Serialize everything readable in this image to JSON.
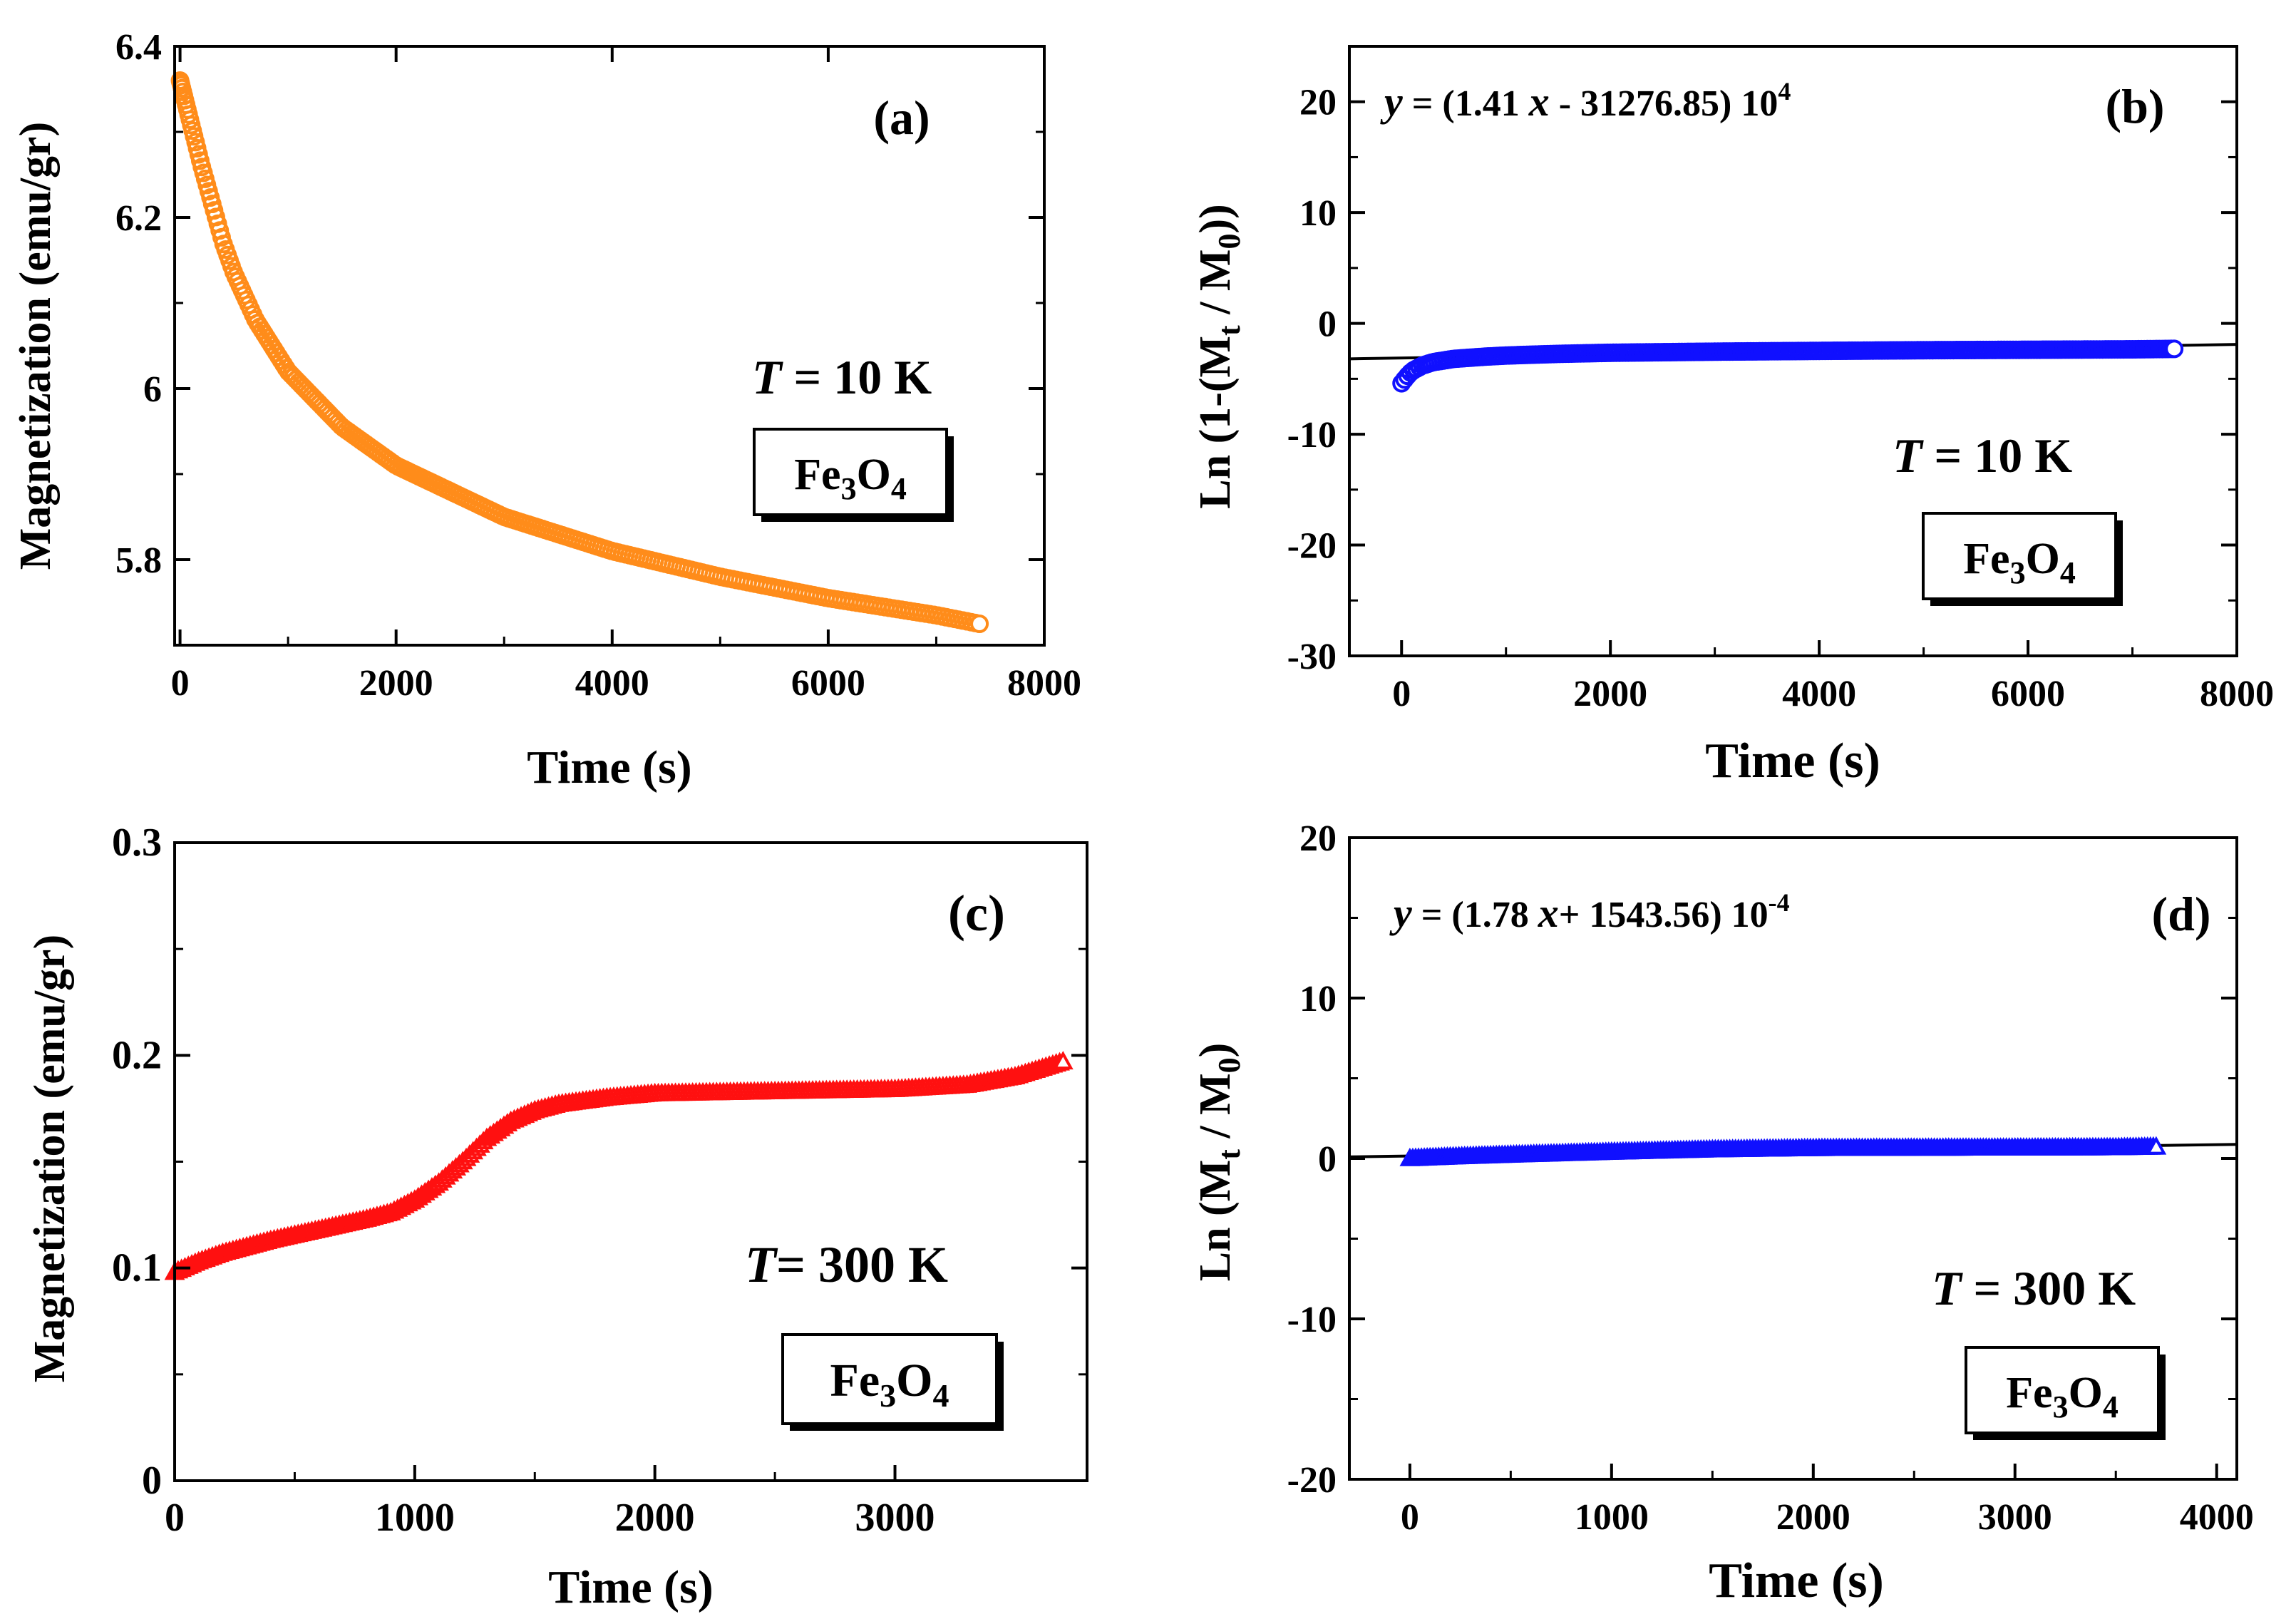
{
  "chart_data": [
    {
      "id": "a",
      "type": "scatter",
      "panel_label": "(a)",
      "xlabel": "Time (s)",
      "ylabel": "Magnetization (emu/gr)",
      "xlim": [
        -50,
        8000
      ],
      "ylim": [
        5.7,
        6.4
      ],
      "xticks": [
        0,
        2000,
        4000,
        6000,
        8000
      ],
      "xtick_labels": [
        "0",
        "2000",
        "4000",
        "6000",
        "8000"
      ],
      "yticks": [
        5.8,
        6.0,
        6.2,
        6.4
      ],
      "ytick_labels": [
        "5.8",
        "6",
        "6.2",
        "6.4"
      ],
      "temperature_var": "T",
      "temperature_value": " = 10 K",
      "material": {
        "base": "Fe",
        "sub1": "3",
        "mid": "O",
        "sub2": "4"
      },
      "series": [
        {
          "name": "M(t) at 10 K",
          "marker": "circle-open",
          "color": "#FF8C1A",
          "x": [
            0,
            50,
            100,
            150,
            200,
            300,
            400,
            500,
            700,
            1000,
            1500,
            2000,
            3000,
            4000,
            5000,
            6000,
            7000,
            7400
          ],
          "y": [
            6.36,
            6.335,
            6.31,
            6.285,
            6.26,
            6.215,
            6.17,
            6.135,
            6.08,
            6.02,
            5.955,
            5.91,
            5.85,
            5.81,
            5.78,
            5.755,
            5.735,
            5.725
          ]
        }
      ]
    },
    {
      "id": "b",
      "type": "scatter",
      "panel_label": "(b)",
      "xlabel": "Time (s)",
      "ylabel": {
        "prefix": "Ln (1-(M",
        "sub1": "t",
        "mid": " / M",
        "sub2": "0",
        "suffix": "))"
      },
      "xlim": [
        -500,
        8000
      ],
      "ylim": [
        -30,
        25
      ],
      "xticks": [
        0,
        2000,
        4000,
        6000,
        8000
      ],
      "xtick_labels": [
        "0",
        "2000",
        "4000",
        "6000",
        "8000"
      ],
      "yticks": [
        -30,
        -20,
        -10,
        0,
        10,
        20
      ],
      "ytick_labels": [
        "-30",
        "-20",
        "-10",
        "0",
        "10",
        "20"
      ],
      "equation": {
        "y": "y",
        "eq_a": " = (1.41 ",
        "x": "x",
        "eq_b": " - 31276.85) 10",
        "exp": "4"
      },
      "temperature_var": "T",
      "temperature_value": " = 10 K",
      "material": {
        "base": "Fe",
        "sub1": "3",
        "mid": "O",
        "sub2": "4"
      },
      "fit": {
        "x": [
          -500,
          8000
        ],
        "y": [
          -3.2,
          -1.9
        ]
      },
      "series": [
        {
          "name": "Ln(1-(Mt/M0)) at 10 K",
          "marker": "circle-open",
          "color": "#1010FF",
          "x": [
            0,
            50,
            100,
            200,
            300,
            500,
            800,
            1000,
            1500,
            2000,
            3000,
            4000,
            5000,
            6000,
            7000,
            7400
          ],
          "y": [
            -5.4,
            -4.8,
            -4.3,
            -3.8,
            -3.5,
            -3.2,
            -3.0,
            -2.9,
            -2.75,
            -2.65,
            -2.55,
            -2.48,
            -2.42,
            -2.38,
            -2.34,
            -2.3
          ]
        }
      ]
    },
    {
      "id": "c",
      "type": "scatter",
      "panel_label": "(c)",
      "xlabel": "Time (s)",
      "ylabel": "Magnetization (emu/gr)",
      "xlim": [
        0,
        3800
      ],
      "ylim": [
        0,
        0.3
      ],
      "xticks": [
        0,
        1000,
        2000,
        3000
      ],
      "xtick_labels": [
        "0",
        "1000",
        "2000",
        "3000"
      ],
      "yticks": [
        0,
        0.1,
        0.2,
        0.3
      ],
      "ytick_labels": [
        "0",
        "0.1",
        "0.2",
        "0.3"
      ],
      "temperature_var": "T",
      "temperature_value": "= 300 K",
      "material": {
        "base": "Fe",
        "sub1": "3",
        "mid": "O",
        "sub2": "4"
      },
      "series": [
        {
          "name": "M(t) at 300 K",
          "marker": "triangle-open",
          "color": "#FF1010",
          "x": [
            0,
            100,
            200,
            400,
            600,
            800,
            900,
            1000,
            1100,
            1200,
            1300,
            1400,
            1500,
            1600,
            1800,
            2000,
            2500,
            3000,
            3300,
            3500,
            3700
          ],
          "y": [
            0.098,
            0.103,
            0.107,
            0.113,
            0.118,
            0.123,
            0.126,
            0.132,
            0.14,
            0.15,
            0.161,
            0.169,
            0.174,
            0.177,
            0.18,
            0.182,
            0.183,
            0.184,
            0.186,
            0.19,
            0.197
          ]
        }
      ]
    },
    {
      "id": "d",
      "type": "scatter",
      "panel_label": "(d)",
      "xlabel": "Time (s)",
      "ylabel": {
        "prefix": "Ln (M",
        "sub1": "t",
        "mid": " / M",
        "sub2": "0",
        "suffix": ")"
      },
      "xlim": [
        -300,
        4100
      ],
      "ylim": [
        -20,
        20
      ],
      "xticks": [
        0,
        1000,
        2000,
        3000,
        4000
      ],
      "xtick_labels": [
        "0",
        "1000",
        "2000",
        "3000",
        "4000"
      ],
      "yticks": [
        -20,
        -10,
        0,
        10,
        20
      ],
      "ytick_labels": [
        "-20",
        "-10",
        "0",
        "10",
        "20"
      ],
      "equation": {
        "y": "y",
        "eq_a": " = (1.78 ",
        "x": "x",
        "eq_b": "+ 1543.56) 10",
        "exp": "-4"
      },
      "temperature_var": "T",
      "temperature_value": " = 300 K",
      "material": {
        "base": "Fe",
        "sub1": "3",
        "mid": "O",
        "sub2": "4"
      },
      "fit": {
        "x": [
          -300,
          4100
        ],
        "y": [
          0.1,
          0.88
        ]
      },
      "series": [
        {
          "name": "Ln(Mt/M0) at 300 K",
          "marker": "triangle-open",
          "color": "#1010FF",
          "x": [
            0,
            200,
            500,
            1000,
            1500,
            2000,
            2500,
            3000,
            3500,
            3700
          ],
          "y": [
            0.0,
            0.1,
            0.22,
            0.4,
            0.55,
            0.63,
            0.65,
            0.66,
            0.68,
            0.72
          ]
        }
      ]
    }
  ]
}
